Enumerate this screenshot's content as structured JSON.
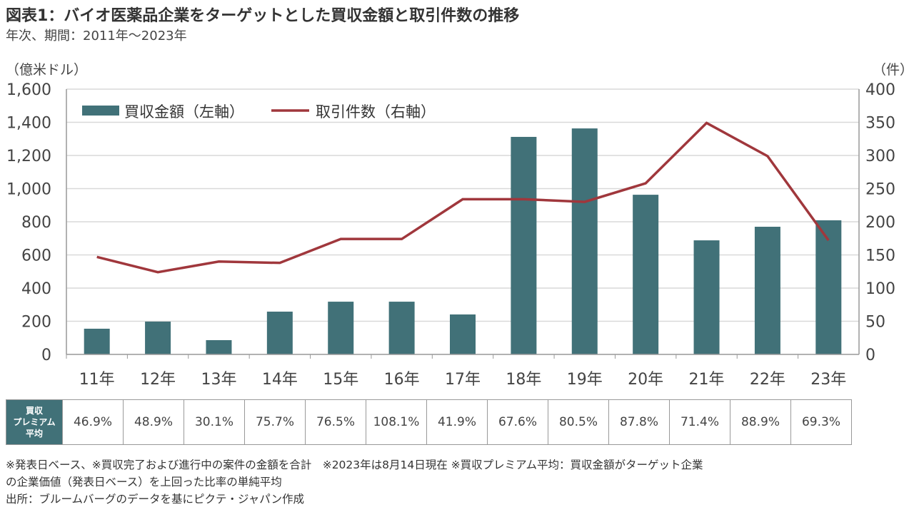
{
  "title": "図表1：バイオ医薬品企業をターゲットとした買収金額と取引件数の推移",
  "subtitle": "年次、期間：2011年～2023年",
  "chart_data": {
    "type": "bar+line",
    "categories": [
      "11年",
      "12年",
      "13年",
      "14年",
      "15年",
      "16年",
      "17年",
      "18年",
      "19年",
      "20年",
      "21年",
      "22年",
      "23年"
    ],
    "left_axis": {
      "label": "（億米ドル）",
      "ylim": [
        0,
        1600
      ],
      "ticks": [
        0,
        200,
        400,
        600,
        800,
        1000,
        1200,
        1400,
        1600
      ],
      "tick_labels": [
        "0",
        "200",
        "400",
        "600",
        "800",
        "1,000",
        "1,200",
        "1,400",
        "1,600"
      ]
    },
    "right_axis": {
      "label": "（件）",
      "ylim": [
        0,
        400
      ],
      "ticks": [
        0,
        50,
        100,
        150,
        200,
        250,
        300,
        350,
        400
      ],
      "tick_labels": [
        "0",
        "50",
        "100",
        "150",
        "200",
        "250",
        "300",
        "350",
        "400"
      ]
    },
    "series": [
      {
        "name": "買収金額（左軸）",
        "type": "bar",
        "axis": "left",
        "color": "#417178",
        "values": [
          155,
          198,
          86,
          258,
          318,
          318,
          241,
          1312,
          1363,
          963,
          688,
          770,
          809
        ]
      },
      {
        "name": "取引件数（右軸）",
        "type": "line",
        "axis": "right",
        "color": "#A0373C",
        "values": [
          147,
          124,
          140,
          138,
          174,
          174,
          234,
          234,
          230,
          258,
          349,
          299,
          172
        ]
      }
    ],
    "legend": "top-left",
    "grid": true
  },
  "table": {
    "header": "買収\nプレミアム\n平均",
    "header_lines": [
      "買収",
      "プレミアム",
      "平均"
    ],
    "values": [
      "46.9%",
      "48.9%",
      "30.1%",
      "75.7%",
      "76.5%",
      "108.1%",
      "41.9%",
      "67.6%",
      "80.5%",
      "87.8%",
      "71.4%",
      "88.9%",
      "69.3%"
    ]
  },
  "notes": [
    "※発表日ベース、※買収完了および進行中の案件の金額を合計　※2023年は8月14日現在 ※買収プレミアム平均：買収金額がターゲット企業",
    "の企業価値（発表日ベース）を上回った比率の単純平均",
    "出所：ブルームバーグのデータを基にピクテ・ジャパン作成"
  ]
}
